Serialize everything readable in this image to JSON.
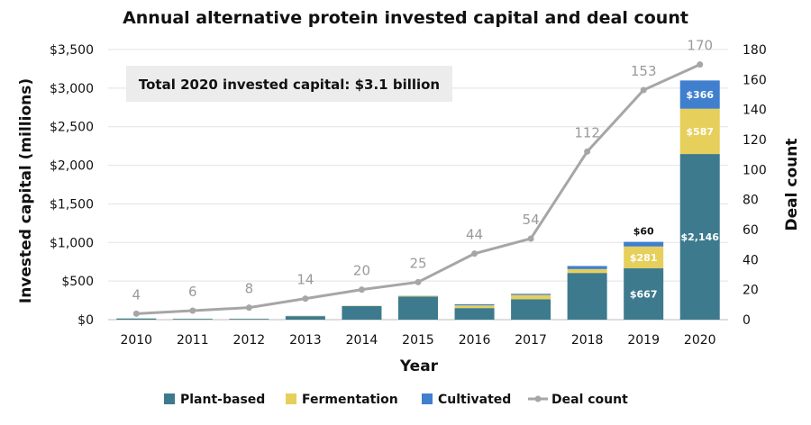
{
  "chart_data": {
    "type": "bar",
    "title": "Annual alternative protein invested capital and deal count",
    "xlabel": "Year",
    "ylabel": "Invested capital (millions)",
    "y2label": "Deal count",
    "categories": [
      "2010",
      "2011",
      "2012",
      "2013",
      "2014",
      "2015",
      "2016",
      "2017",
      "2018",
      "2019",
      "2020"
    ],
    "ylim": [
      0,
      3500
    ],
    "y2lim": [
      0,
      180
    ],
    "yticks": [
      "$0",
      "$500",
      "$1,000",
      "$1,500",
      "$2,000",
      "$2,500",
      "$3,000",
      "$3,500"
    ],
    "y2ticks": [
      "0",
      "20",
      "40",
      "60",
      "80",
      "100",
      "120",
      "140",
      "160",
      "180"
    ],
    "series": [
      {
        "name": "Plant-based",
        "kind": "bar",
        "color": "#3d7a8e",
        "values": [
          15,
          10,
          10,
          45,
          175,
          300,
          150,
          265,
          605,
          667,
          2146
        ],
        "labels": [
          "",
          "",
          "",
          "",
          "",
          "",
          "",
          "",
          "",
          "$667",
          "$2,146"
        ]
      },
      {
        "name": "Fermentation",
        "kind": "bar",
        "color": "#e6cf5a",
        "values": [
          2,
          2,
          2,
          4,
          4,
          8,
          35,
          55,
          50,
          281,
          587
        ],
        "labels": [
          "",
          "",
          "",
          "",
          "",
          "",
          "",
          "",
          "",
          "$281",
          "$587"
        ]
      },
      {
        "name": "Cultivated",
        "kind": "bar",
        "color": "#3f7fce",
        "values": [
          1,
          1,
          1,
          1,
          1,
          2,
          15,
          15,
          40,
          60,
          366
        ],
        "labels": [
          "",
          "",
          "",
          "",
          "",
          "",
          "",
          "",
          "",
          "$60",
          "$366"
        ]
      },
      {
        "name": "Deal count",
        "kind": "line",
        "axis": "right",
        "color": "#a6a6a6",
        "values": [
          4,
          6,
          8,
          14,
          20,
          25,
          44,
          54,
          112,
          153,
          170
        ]
      }
    ],
    "annotation": "Total 2020 invested capital: $3.1 billion",
    "legend_position": "bottom",
    "grid": true
  }
}
